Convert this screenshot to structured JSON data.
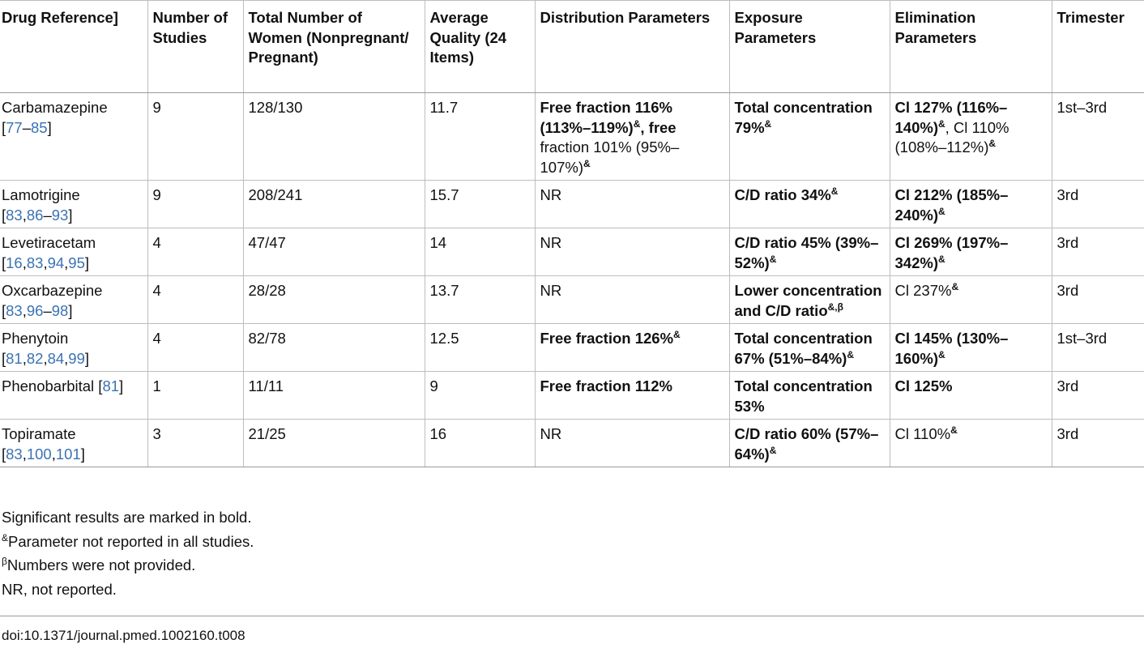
{
  "table": {
    "headers": [
      "Drug Reference]",
      "Number of Studies",
      "Total Number of Women (Nonpregnant/ Pregnant)",
      "Average Quality (24 Items)",
      "Distribution Parameters",
      "Exposure Parameters",
      "Elimination Parameters",
      "Trimester"
    ],
    "rows": [
      {
        "drug": [
          {
            "t": "Carbamazepine "
          },
          {
            "t": "[",
            "br": true
          },
          {
            "t": "77",
            "ref": true
          },
          {
            "t": "–"
          },
          {
            "t": "85",
            "ref": true
          },
          {
            "t": "]"
          }
        ],
        "studies": "9",
        "women": "128/130",
        "quality": "11.7",
        "distribution": [
          {
            "t": "Free fraction 116% (113%–119%)",
            "b": true
          },
          {
            "t": "&",
            "sup": true,
            "b": true
          },
          {
            "t": ", free",
            "b": true
          },
          {
            "t": " fraction 101% (95%–107%)"
          },
          {
            "t": "&",
            "sup": true,
            "b": true
          }
        ],
        "exposure": [
          {
            "t": "Total concentration 79%",
            "b": true
          },
          {
            "t": "&",
            "sup": true,
            "b": true
          }
        ],
        "elimination": [
          {
            "t": "Cl 127% (116%–140%)",
            "b": true
          },
          {
            "t": "&",
            "sup": true,
            "b": true
          },
          {
            "t": ", Cl 110% (108%–112%)"
          },
          {
            "t": "&",
            "sup": true,
            "b": true
          }
        ],
        "trimester": "1st–3rd"
      },
      {
        "drug": [
          {
            "t": "Lamotrigine "
          },
          {
            "t": "[",
            "br": true
          },
          {
            "t": "83",
            "ref": true
          },
          {
            "t": ","
          },
          {
            "t": "86",
            "ref": true
          },
          {
            "t": "–"
          },
          {
            "t": "93",
            "ref": true
          },
          {
            "t": "]"
          }
        ],
        "studies": "9",
        "women": "208/241",
        "quality": "15.7",
        "distribution": [
          {
            "t": "NR"
          }
        ],
        "exposure": [
          {
            "t": "C/D ratio 34%",
            "b": true
          },
          {
            "t": "&",
            "sup": true,
            "b": true
          }
        ],
        "elimination": [
          {
            "t": "Cl 212% (185%–240%)",
            "b": true
          },
          {
            "t": "&",
            "sup": true,
            "b": true
          }
        ],
        "trimester": "3rd"
      },
      {
        "drug": [
          {
            "t": "Levetiracetam "
          },
          {
            "t": "[",
            "br": true
          },
          {
            "t": "16",
            "ref": true
          },
          {
            "t": ","
          },
          {
            "t": "83",
            "ref": true
          },
          {
            "t": ","
          },
          {
            "t": "94",
            "ref": true
          },
          {
            "t": ","
          },
          {
            "t": "95",
            "ref": true
          },
          {
            "t": "]"
          }
        ],
        "studies": "4",
        "women": "47/47",
        "quality": "14",
        "distribution": [
          {
            "t": "NR"
          }
        ],
        "exposure": [
          {
            "t": "C/D ratio 45% (39%–52%)",
            "b": true
          },
          {
            "t": "&",
            "sup": true,
            "b": true
          }
        ],
        "elimination": [
          {
            "t": "Cl 269% (197%–342%)",
            "b": true
          },
          {
            "t": "&",
            "sup": true,
            "b": true
          }
        ],
        "trimester": "3rd"
      },
      {
        "drug": [
          {
            "t": "Oxcarbazepine "
          },
          {
            "t": "[",
            "br": true
          },
          {
            "t": "83",
            "ref": true
          },
          {
            "t": ","
          },
          {
            "t": "96",
            "ref": true
          },
          {
            "t": "–"
          },
          {
            "t": "98",
            "ref": true
          },
          {
            "t": "]"
          }
        ],
        "studies": "4",
        "women": "28/28",
        "quality": "13.7",
        "distribution": [
          {
            "t": "NR"
          }
        ],
        "exposure": [
          {
            "t": "Lower concentration and C/D ratio",
            "b": true
          },
          {
            "t": "&,β",
            "sup": true,
            "b": true
          }
        ],
        "elimination": [
          {
            "t": "Cl 237%"
          },
          {
            "t": "&",
            "sup": true,
            "b": true
          }
        ],
        "trimester": "3rd"
      },
      {
        "drug": [
          {
            "t": "Phenytoin "
          },
          {
            "t": "[",
            "br": true
          },
          {
            "t": "81",
            "ref": true
          },
          {
            "t": ","
          },
          {
            "t": "82",
            "ref": true
          },
          {
            "t": ","
          },
          {
            "t": "84",
            "ref": true
          },
          {
            "t": ","
          },
          {
            "t": "99",
            "ref": true
          },
          {
            "t": "]"
          }
        ],
        "studies": "4",
        "women": "82/78",
        "quality": "12.5",
        "distribution": [
          {
            "t": "Free fraction 126%",
            "b": true
          },
          {
            "t": "&",
            "sup": true,
            "b": true
          }
        ],
        "exposure": [
          {
            "t": "Total concentration 67% (51%–84%)",
            "b": true
          },
          {
            "t": "&",
            "sup": true,
            "b": true
          }
        ],
        "elimination": [
          {
            "t": "Cl 145% (130%–160%)",
            "b": true
          },
          {
            "t": "&",
            "sup": true,
            "b": true
          }
        ],
        "trimester": "1st–3rd"
      },
      {
        "drug": [
          {
            "t": "Phenobarbital ["
          },
          {
            "t": "81",
            "ref": true
          },
          {
            "t": "]"
          }
        ],
        "studies": "1",
        "women": "11/11",
        "quality": "9",
        "distribution": [
          {
            "t": "Free fraction 112%",
            "b": true
          }
        ],
        "exposure": [
          {
            "t": "Total concentration 53%",
            "b": true
          }
        ],
        "elimination": [
          {
            "t": "Cl 125%",
            "b": true
          }
        ],
        "trimester": "3rd"
      },
      {
        "drug": [
          {
            "t": "Topiramate "
          },
          {
            "t": "[",
            "br": true
          },
          {
            "t": "83",
            "ref": true
          },
          {
            "t": ","
          },
          {
            "t": "100",
            "ref": true
          },
          {
            "t": ","
          },
          {
            "t": "101",
            "ref": true
          },
          {
            "t": "]"
          }
        ],
        "studies": "3",
        "women": "21/25",
        "quality": "16",
        "distribution": [
          {
            "t": "NR"
          }
        ],
        "exposure": [
          {
            "t": "C/D ratio 60% (57%–64%)",
            "b": true
          },
          {
            "t": "&",
            "sup": true,
            "b": true
          }
        ],
        "elimination": [
          {
            "t": "Cl 110%"
          },
          {
            "t": "&",
            "sup": true,
            "b": true
          }
        ],
        "trimester": "3rd"
      }
    ]
  },
  "footnotes": [
    {
      "sup": "",
      "text": "Significant results are marked in bold."
    },
    {
      "sup": "&",
      "text": "Parameter not reported in all studies."
    },
    {
      "sup": "β",
      "text": "Numbers were not provided."
    },
    {
      "sup": "",
      "text": "NR, not reported."
    }
  ],
  "doi": "doi:10.1371/journal.pmed.1002160.t008"
}
